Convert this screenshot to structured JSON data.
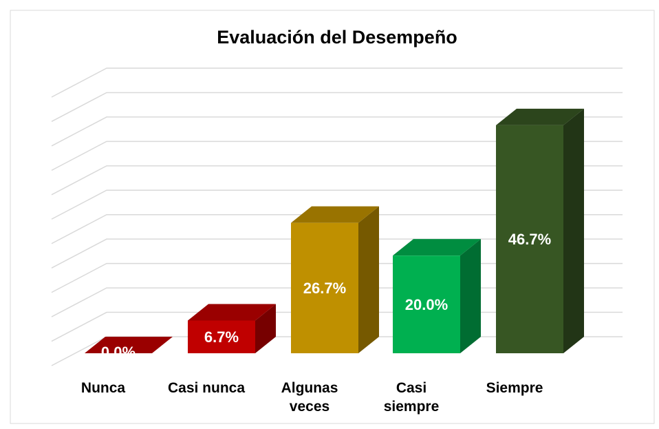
{
  "chart_data": {
    "type": "bar3d",
    "title": "Evaluación del Desempeño",
    "categories": [
      "Nunca",
      "Casi nunca",
      "Algunas veces",
      "Casi siempre",
      "Siempre"
    ],
    "values": [
      0,
      6.7,
      26.7,
      20.0,
      46.7
    ],
    "value_labels": [
      "0.0%",
      "6.7%",
      "26.7%",
      "20.0%",
      "46.7%"
    ],
    "colors": [
      "#c00000",
      "#c00000",
      "#bf9000",
      "#00b050",
      "#375623"
    ],
    "ylim": [
      0,
      55
    ],
    "yticks": [
      0,
      5,
      10,
      15,
      20,
      25,
      30,
      35,
      40,
      45,
      50,
      55
    ],
    "grid": true
  }
}
